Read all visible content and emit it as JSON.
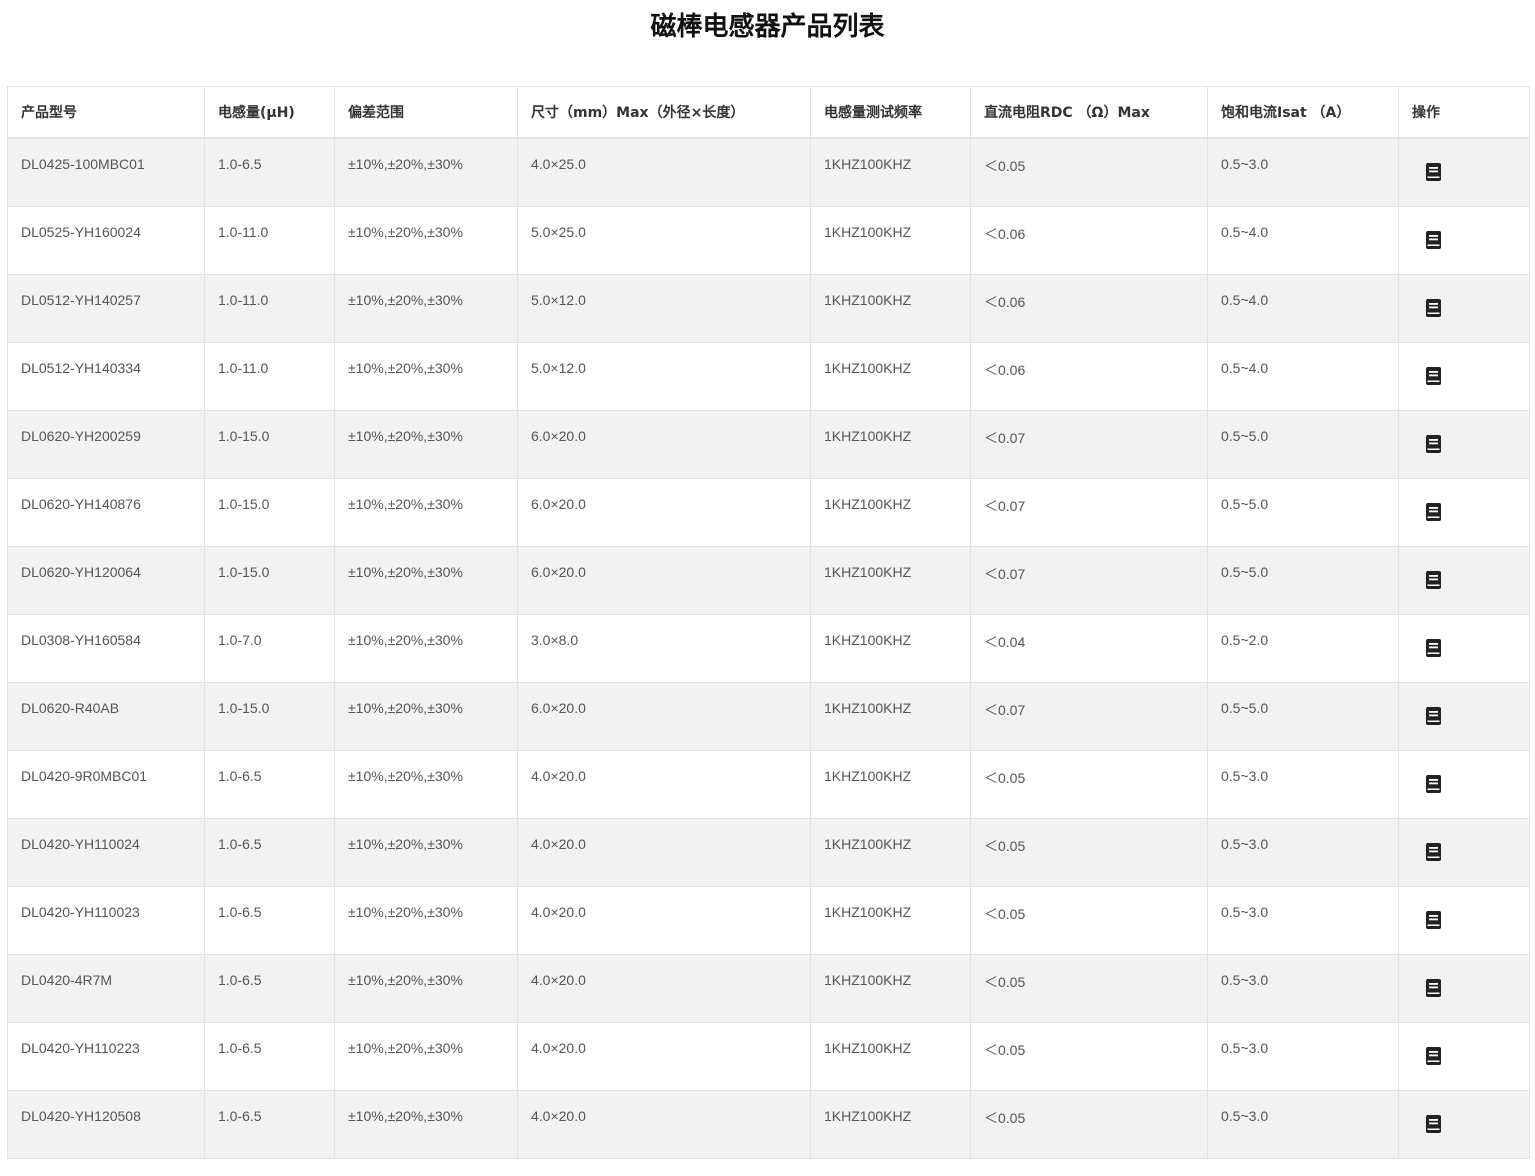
{
  "title": "磁棒电感器产品列表",
  "columns": [
    "产品型号",
    "电感量(μH)",
    "偏差范围",
    "尺寸（mm）Max（外径×长度）",
    "电感量测试频率",
    "直流电阻RDC （Ω）Max",
    "饱和电流Isat （A）",
    "操作"
  ],
  "action_icon": "book-icon",
  "rows": [
    [
      "DL0425-100MBC01",
      "1.0-6.5",
      "±10%,±20%,±30%",
      "4.0×25.0",
      "1KHZ100KHZ",
      "＜0.05",
      "0.5~3.0"
    ],
    [
      "DL0525-YH160024",
      "1.0-11.0",
      "±10%,±20%,±30%",
      "5.0×25.0",
      "1KHZ100KHZ",
      "＜0.06",
      "0.5~4.0"
    ],
    [
      "DL0512-YH140257",
      "1.0-11.0",
      "±10%,±20%,±30%",
      "5.0×12.0",
      "1KHZ100KHZ",
      "＜0.06",
      "0.5~4.0"
    ],
    [
      "DL0512-YH140334",
      "1.0-11.0",
      "±10%,±20%,±30%",
      "5.0×12.0",
      "1KHZ100KHZ",
      "＜0.06",
      "0.5~4.0"
    ],
    [
      "DL0620-YH200259",
      "1.0-15.0",
      "±10%,±20%,±30%",
      "6.0×20.0",
      "1KHZ100KHZ",
      "＜0.07",
      "0.5~5.0"
    ],
    [
      "DL0620-YH140876",
      "1.0-15.0",
      "±10%,±20%,±30%",
      "6.0×20.0",
      "1KHZ100KHZ",
      "＜0.07",
      "0.5~5.0"
    ],
    [
      "DL0620-YH120064",
      "1.0-15.0",
      "±10%,±20%,±30%",
      "6.0×20.0",
      "1KHZ100KHZ",
      "＜0.07",
      "0.5~5.0"
    ],
    [
      "DL0308-YH160584",
      "1.0-7.0",
      "±10%,±20%,±30%",
      "3.0×8.0",
      "1KHZ100KHZ",
      "＜0.04",
      "0.5~2.0"
    ],
    [
      "DL0620-R40AB",
      "1.0-15.0",
      "±10%,±20%,±30%",
      "6.0×20.0",
      "1KHZ100KHZ",
      "＜0.07",
      "0.5~5.0"
    ],
    [
      "DL0420-9R0MBC01",
      "1.0-6.5",
      "±10%,±20%,±30%",
      "4.0×20.0",
      "1KHZ100KHZ",
      "＜0.05",
      "0.5~3.0"
    ],
    [
      "DL0420-YH110024",
      "1.0-6.5",
      "±10%,±20%,±30%",
      "4.0×20.0",
      "1KHZ100KHZ",
      "＜0.05",
      "0.5~3.0"
    ],
    [
      "DL0420-YH110023",
      "1.0-6.5",
      "±10%,±20%,±30%",
      "4.0×20.0",
      "1KHZ100KHZ",
      "＜0.05",
      "0.5~3.0"
    ],
    [
      "DL0420-4R7M",
      "1.0-6.5",
      "±10%,±20%,±30%",
      "4.0×20.0",
      "1KHZ100KHZ",
      "＜0.05",
      "0.5~3.0"
    ],
    [
      "DL0420-YH110223",
      "1.0-6.5",
      "±10%,±20%,±30%",
      "4.0×20.0",
      "1KHZ100KHZ",
      "＜0.05",
      "0.5~3.0"
    ],
    [
      "DL0420-YH120508",
      "1.0-6.5",
      "±10%,±20%,±30%",
      "4.0×20.0",
      "1KHZ100KHZ",
      "＜0.05",
      "0.5~3.0"
    ]
  ]
}
